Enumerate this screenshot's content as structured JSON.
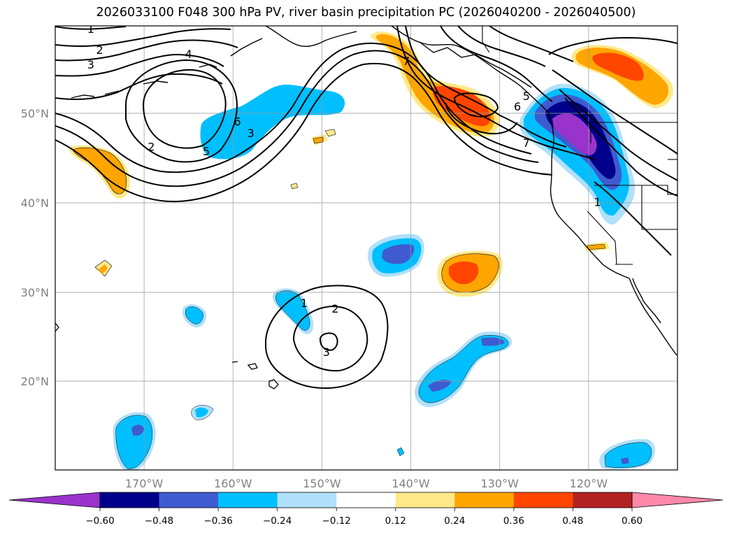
{
  "title": "2026033100 F048 300 hPa PV, river basin precipitation PC (2026040200 - 2026040500)",
  "chart_data": {
    "type": "map-contour",
    "title": "2026033100 F048 300 hPa PV, river basin precipitation PC (2026040200 - 2026040500)",
    "lon_range": [
      -180,
      -110
    ],
    "lat_range": [
      10,
      60
    ],
    "lat_ticks": [
      {
        "value": 20,
        "label": "20°N"
      },
      {
        "value": 30,
        "label": "30°N"
      },
      {
        "value": 40,
        "label": "40°N"
      },
      {
        "value": 50,
        "label": "50°N"
      }
    ],
    "lon_ticks": [
      {
        "value": -170,
        "label": "170°W"
      },
      {
        "value": -160,
        "label": "160°W"
      },
      {
        "value": -150,
        "label": "150°W"
      },
      {
        "value": -140,
        "label": "140°W"
      },
      {
        "value": -130,
        "label": "130°W"
      },
      {
        "value": -120,
        "label": "120°W"
      }
    ],
    "grid": true,
    "colorbar": {
      "levels": [
        "-0.60",
        "-0.48",
        "-0.36",
        "-0.24",
        "-0.12",
        "0.12",
        "0.24",
        "0.36",
        "0.48",
        "0.60"
      ],
      "colors": [
        "#9933cc",
        "#00008b",
        "#3f5bd0",
        "#00bfff",
        "#b0e0fa",
        "#ffffff",
        "#ffe98a",
        "#ffa500",
        "#ff4500",
        "#b22222",
        "#ff88aa"
      ],
      "extend": "both"
    },
    "pv_contour_labels": [
      {
        "text": "1",
        "lon": -176,
        "lat": 59.7
      },
      {
        "text": "2",
        "lon": -175,
        "lat": 57.3
      },
      {
        "text": "3",
        "lon": -176,
        "lat": 55.6
      },
      {
        "text": "4",
        "lon": -165,
        "lat": 56.8
      },
      {
        "text": "6",
        "lon": -159.5,
        "lat": 49.1
      },
      {
        "text": "5",
        "lon": -163,
        "lat": 45.8
      },
      {
        "text": "3",
        "lon": -158,
        "lat": 47.8
      },
      {
        "text": "2",
        "lon": -169.2,
        "lat": 46.3
      },
      {
        "text": "7",
        "lon": -140.5,
        "lat": 56.0
      },
      {
        "text": "5",
        "lon": -127,
        "lat": 52.0
      },
      {
        "text": "6",
        "lon": -128,
        "lat": 50.8
      },
      {
        "text": "7",
        "lon": -127,
        "lat": 46.7
      },
      {
        "text": "1",
        "lon": -119,
        "lat": 40.1
      },
      {
        "text": "1",
        "lon": -152,
        "lat": 28.8
      },
      {
        "text": "2",
        "lon": -148.5,
        "lat": 28.2
      },
      {
        "text": "3",
        "lon": -149.5,
        "lat": 23.3
      }
    ],
    "precip_anomalies": [
      {
        "sign": "negative",
        "max_level": -0.36,
        "center_lon": -156,
        "center_lat": 49
      },
      {
        "sign": "negative",
        "max_level": -0.6,
        "center_lon": -123.5,
        "center_lat": 46.5
      },
      {
        "sign": "positive",
        "max_level": 0.36,
        "center_lon": -135.5,
        "center_lat": 52
      },
      {
        "sign": "positive",
        "max_level": 0.36,
        "center_lon": -118.5,
        "center_lat": 56
      },
      {
        "sign": "positive",
        "max_level": 0.24,
        "center_lon": -175.5,
        "center_lat": 44.5
      },
      {
        "sign": "negative",
        "max_level": -0.36,
        "center_lon": -141,
        "center_lat": 34
      },
      {
        "sign": "positive",
        "max_level": 0.36,
        "center_lon": -133.5,
        "center_lat": 32
      },
      {
        "sign": "negative",
        "max_level": -0.36,
        "center_lon": -134,
        "center_lat": 22
      },
      {
        "sign": "negative",
        "max_level": -0.36,
        "center_lon": -171,
        "center_lat": 14
      },
      {
        "sign": "negative",
        "max_level": -0.24,
        "center_lon": -152.5,
        "center_lat": 27.5
      },
      {
        "sign": "negative",
        "max_level": -0.36,
        "center_lon": -116,
        "center_lat": 11.5
      }
    ]
  }
}
